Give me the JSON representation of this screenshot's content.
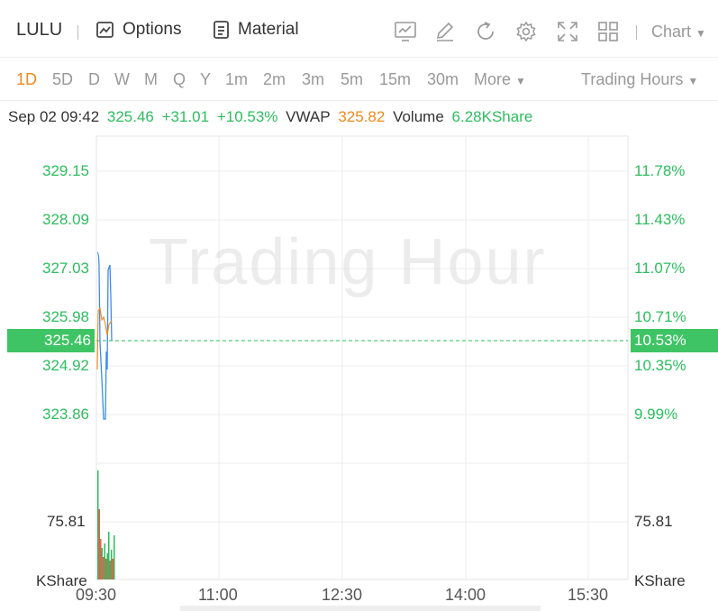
{
  "toolbar": {
    "symbol": "LULU",
    "options_label": "Options",
    "material_label": "Material",
    "chart_label": "Chart",
    "icons": [
      "chart-panel-icon",
      "draw-icon",
      "refresh-icon",
      "settings-icon",
      "fullscreen-icon",
      "layout-grid-icon"
    ]
  },
  "periods": {
    "items": [
      "1D",
      "5D",
      "D",
      "W",
      "M",
      "Q",
      "Y",
      "1m",
      "2m",
      "3m",
      "5m",
      "15m",
      "30m",
      "More"
    ],
    "active": "1D",
    "trading_hours_label": "Trading Hours"
  },
  "info": {
    "datetime": "Sep 02 09:42",
    "price": "325.46",
    "change": "+31.01",
    "change_pct": "+10.53%",
    "vwap_label": "VWAP",
    "vwap": "325.82",
    "volume_label": "Volume",
    "volume": "6.28KShare"
  },
  "axis": {
    "left_prices": [
      "329.15",
      "328.09",
      "327.03",
      "325.98",
      "324.92",
      "323.86"
    ],
    "right_pcts": [
      "11.78%",
      "11.43%",
      "11.07%",
      "10.71%",
      "10.35%",
      "9.99%"
    ],
    "current_price": "325.46",
    "current_pct": "10.53%",
    "volume_tick": "75.81",
    "volume_unit": "KShare",
    "times": [
      "09:30",
      "11:00",
      "12:30",
      "14:00",
      "15:30"
    ]
  },
  "watermark": "Trading Hour",
  "colors": {
    "up": "#2dbd5f",
    "down": "#f05a4a",
    "price_line": "#3a8ee6",
    "vwap_line": "#f0891b",
    "accent": "#f0891b"
  }
}
